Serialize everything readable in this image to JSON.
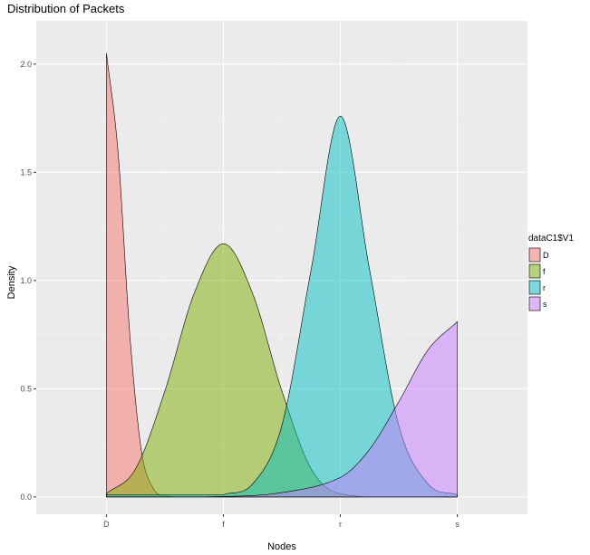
{
  "chart_data": {
    "type": "area",
    "subtype": "density",
    "title": "Distribution of Packets",
    "xlabel": "Nodes",
    "ylabel": "Density",
    "categories": [
      "D",
      "f",
      "r",
      "s"
    ],
    "yticks": [
      0.0,
      0.5,
      1.0,
      1.5,
      2.0
    ],
    "ytick_labels": [
      "0.0",
      "0.5",
      "1.0",
      "1.5",
      "2.0"
    ],
    "ylim": [
      -0.08,
      2.2
    ],
    "xlim": [
      0.4,
      4.6
    ],
    "grid": true,
    "background": "#ebebeb",
    "legend": {
      "title": "dataC1$V1",
      "position": "right"
    },
    "series": [
      {
        "name": "D",
        "color": "#F8766D",
        "x_range": [
          1,
          4
        ],
        "points": [
          [
            1.0,
            2.05
          ],
          [
            1.1,
            1.59
          ],
          [
            1.2,
            0.75
          ],
          [
            1.3,
            0.21
          ],
          [
            1.4,
            0.04
          ],
          [
            1.5,
            0.004
          ],
          [
            2.0,
            0.0
          ],
          [
            4.0,
            0.0
          ]
        ]
      },
      {
        "name": "f",
        "color": "#7CAE00",
        "x_range": [
          1,
          4
        ],
        "points": [
          [
            1.0,
            0.015
          ],
          [
            1.25,
            0.13
          ],
          [
            1.5,
            0.49
          ],
          [
            1.75,
            0.94
          ],
          [
            2.0,
            1.17
          ],
          [
            2.25,
            0.94
          ],
          [
            2.5,
            0.49
          ],
          [
            2.75,
            0.13
          ],
          [
            3.0,
            0.015
          ],
          [
            4.0,
            0.0
          ]
        ]
      },
      {
        "name": "r",
        "color": "#00BFC4",
        "x_range": [
          1,
          4
        ],
        "points": [
          [
            2.0,
            0.01
          ],
          [
            2.25,
            0.06
          ],
          [
            2.5,
            0.33
          ],
          [
            2.75,
            1.05
          ],
          [
            3.0,
            1.76
          ],
          [
            3.25,
            1.05
          ],
          [
            3.5,
            0.33
          ],
          [
            3.75,
            0.06
          ],
          [
            4.0,
            0.01
          ]
        ]
      },
      {
        "name": "s",
        "color": "#C77CFF",
        "x_range": [
          1,
          4
        ],
        "points": [
          [
            1.0,
            0.0
          ],
          [
            2.0,
            0.002
          ],
          [
            2.5,
            0.02
          ],
          [
            3.0,
            0.09
          ],
          [
            3.25,
            0.22
          ],
          [
            3.5,
            0.44
          ],
          [
            3.75,
            0.68
          ],
          [
            4.0,
            0.81
          ]
        ]
      }
    ]
  }
}
